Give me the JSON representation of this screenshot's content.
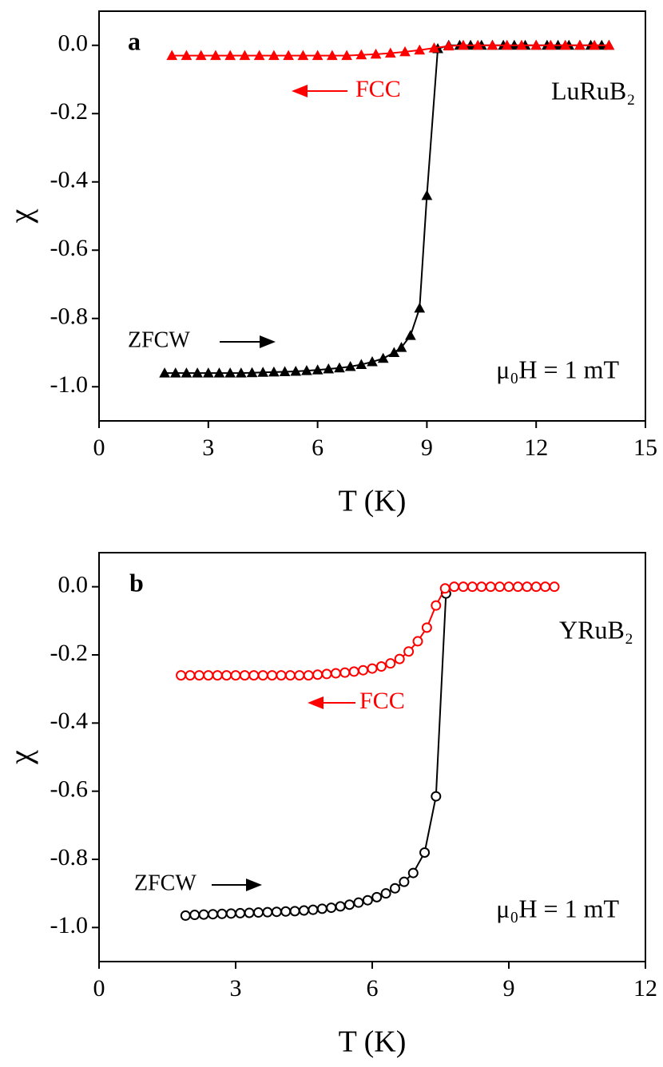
{
  "chart_data": [
    {
      "type": "line",
      "panel_label": "a",
      "sample": "LuRuB₂",
      "fcc_label": "FCC",
      "zfcw_label": "ZFCW",
      "field_label": "μ₀H = 1 mT",
      "xlabel": "T (K)",
      "ylabel": "χ",
      "xlim": [
        0,
        15
      ],
      "xticks": [
        0,
        3,
        6,
        9,
        12,
        15
      ],
      "ylim": [
        -1.1,
        0.1
      ],
      "yticks": [
        {
          "value": 0,
          "label": "0.0"
        },
        -0.2,
        -0.4,
        -0.6,
        -0.8,
        {
          "value": -1,
          "label": "-1.0"
        }
      ],
      "series": [
        {
          "name": "ZFCW",
          "color": "#000000",
          "marker": "triangle",
          "filled": true,
          "x": [
            1.8,
            2.1,
            2.4,
            2.7,
            3.0,
            3.3,
            3.6,
            3.9,
            4.2,
            4.5,
            4.8,
            5.1,
            5.4,
            5.7,
            6.0,
            6.3,
            6.6,
            6.9,
            7.2,
            7.5,
            7.8,
            8.1,
            8.3,
            8.55,
            8.8,
            9.0,
            9.3,
            9.6,
            9.9,
            10.2,
            10.5,
            10.8,
            11.1,
            11.4,
            11.7,
            12.0,
            12.3,
            12.6,
            12.9,
            13.2,
            13.5,
            13.8,
            14.0
          ],
          "values": [
            -0.96,
            -0.96,
            -0.96,
            -0.96,
            -0.96,
            -0.96,
            -0.96,
            -0.96,
            -0.959,
            -0.958,
            -0.957,
            -0.956,
            -0.955,
            -0.953,
            -0.951,
            -0.948,
            -0.945,
            -0.941,
            -0.935,
            -0.927,
            -0.917,
            -0.9,
            -0.885,
            -0.85,
            -0.77,
            -0.44,
            -0.01,
            0,
            0,
            0,
            0,
            0,
            0,
            0,
            0,
            0,
            0,
            0,
            0,
            0,
            0,
            0,
            0
          ]
        },
        {
          "name": "FCC",
          "color": "#ff0000",
          "marker": "triangle",
          "filled": true,
          "x": [
            2.0,
            2.4,
            2.8,
            3.2,
            3.6,
            4.0,
            4.4,
            4.8,
            5.2,
            5.6,
            6.0,
            6.4,
            6.8,
            7.2,
            7.6,
            8.0,
            8.4,
            8.8,
            9.2,
            9.6,
            10.0,
            10.4,
            10.8,
            11.2,
            11.6,
            12.0,
            12.4,
            12.8,
            13.2,
            13.6,
            14.0
          ],
          "values": [
            -0.03,
            -0.03,
            -0.03,
            -0.03,
            -0.03,
            -0.03,
            -0.03,
            -0.03,
            -0.03,
            -0.03,
            -0.03,
            -0.03,
            -0.03,
            -0.028,
            -0.026,
            -0.023,
            -0.019,
            -0.014,
            -0.008,
            -0.002,
            0,
            0,
            0,
            0,
            0,
            0,
            0,
            0,
            0,
            0,
            0
          ]
        }
      ]
    },
    {
      "type": "line",
      "panel_label": "b",
      "sample": "YRuB₂",
      "fcc_label": "FCC",
      "zfcw_label": "ZFCW",
      "field_label": "μ₀H = 1 mT",
      "xlabel": "T (K)",
      "ylabel": "χ",
      "xlim": [
        0,
        12
      ],
      "xticks": [
        0,
        3,
        6,
        9,
        12
      ],
      "ylim": [
        -1.1,
        0.1
      ],
      "yticks": [
        {
          "value": 0,
          "label": "0.0"
        },
        -0.2,
        -0.4,
        -0.6,
        -0.8,
        {
          "value": -1,
          "label": "-1.0"
        }
      ],
      "series": [
        {
          "name": "ZFCW",
          "color": "#000000",
          "marker": "circle",
          "filled": false,
          "x": [
            1.9,
            2.1,
            2.3,
            2.5,
            2.7,
            2.9,
            3.1,
            3.3,
            3.5,
            3.7,
            3.9,
            4.1,
            4.3,
            4.5,
            4.7,
            4.9,
            5.1,
            5.3,
            5.5,
            5.7,
            5.9,
            6.1,
            6.3,
            6.5,
            6.7,
            6.9,
            7.15,
            7.4,
            7.62
          ],
          "values": [
            -0.965,
            -0.963,
            -0.962,
            -0.961,
            -0.96,
            -0.959,
            -0.958,
            -0.957,
            -0.956,
            -0.955,
            -0.954,
            -0.953,
            -0.952,
            -0.95,
            -0.948,
            -0.945,
            -0.942,
            -0.938,
            -0.933,
            -0.927,
            -0.92,
            -0.911,
            -0.9,
            -0.885,
            -0.866,
            -0.84,
            -0.78,
            -0.615,
            -0.02
          ]
        },
        {
          "name": "FCC",
          "color": "#ff0000",
          "marker": "circle",
          "filled": false,
          "x": [
            1.8,
            2.0,
            2.2,
            2.4,
            2.6,
            2.8,
            3.0,
            3.2,
            3.4,
            3.6,
            3.8,
            4.0,
            4.2,
            4.4,
            4.6,
            4.8,
            5.0,
            5.2,
            5.4,
            5.6,
            5.8,
            6.0,
            6.2,
            6.4,
            6.6,
            6.8,
            7.0,
            7.2,
            7.4,
            7.6,
            7.8,
            8.0,
            8.2,
            8.4,
            8.6,
            8.8,
            9.0,
            9.2,
            9.4,
            9.6,
            9.8,
            10.0
          ],
          "values": [
            -0.26,
            -0.26,
            -0.26,
            -0.26,
            -0.26,
            -0.26,
            -0.26,
            -0.26,
            -0.26,
            -0.26,
            -0.26,
            -0.26,
            -0.26,
            -0.26,
            -0.26,
            -0.258,
            -0.256,
            -0.254,
            -0.252,
            -0.249,
            -0.245,
            -0.24,
            -0.234,
            -0.225,
            -0.212,
            -0.19,
            -0.16,
            -0.12,
            -0.055,
            -0.005,
            0,
            0,
            0,
            0,
            0,
            0,
            0,
            0,
            0,
            0,
            0,
            0
          ]
        }
      ]
    }
  ]
}
